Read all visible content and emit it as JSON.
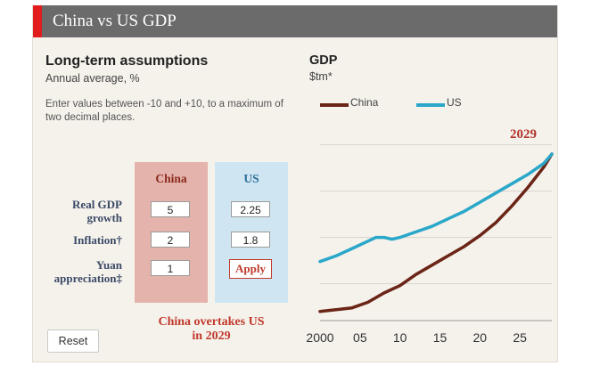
{
  "header": {
    "title": "China vs US GDP"
  },
  "assumptions": {
    "title": "Long-term assumptions",
    "subtitle": "Annual average, %",
    "instructions": "Enter values between -10 and +10, to a maximum of two decimal places.",
    "columns": {
      "china": "China",
      "us": "US"
    },
    "rows": [
      {
        "label_line1": "Real GDP",
        "label_line2": "growth",
        "china": "5",
        "us": "2.25"
      },
      {
        "label_line1": "Inflation†",
        "label_line2": "",
        "china": "2",
        "us": "1.8"
      },
      {
        "label_line1": "Yuan",
        "label_line2": "appreciation‡",
        "china": "1",
        "us": ""
      }
    ],
    "apply_label": "Apply",
    "overtake_line1": "China overtakes US",
    "overtake_line2": "in 2029",
    "reset_label": "Reset"
  },
  "colors": {
    "header_bg": "#6b6b6b",
    "header_accent": "#e01c1c",
    "china": "#6b2517",
    "us": "#2aa7c9",
    "china_column_bg": "#e4b3ac",
    "us_column_bg": "#cfe6f2",
    "highlight_red": "#c0392b"
  },
  "chart_data": {
    "type": "line",
    "title": "GDP",
    "ylabel": "$tm*",
    "annotation": "2029",
    "x_ticks": [
      2000,
      2005,
      2010,
      2015,
      2020,
      2025
    ],
    "x_tick_labels": [
      "2000",
      "05",
      "10",
      "15",
      "20",
      "25"
    ],
    "xlim": [
      2000,
      2029
    ],
    "ylim": [
      0,
      1
    ],
    "grid": true,
    "legend": "top",
    "series": [
      {
        "name": "China",
        "x": [
          2000,
          2002,
          2004,
          2006,
          2008,
          2010,
          2012,
          2014,
          2016,
          2018,
          2020,
          2022,
          2024,
          2026,
          2028,
          2029
        ],
        "y": [
          0.02,
          0.03,
          0.04,
          0.07,
          0.12,
          0.16,
          0.22,
          0.27,
          0.32,
          0.37,
          0.43,
          0.5,
          0.59,
          0.69,
          0.8,
          0.87
        ]
      },
      {
        "name": "US",
        "x": [
          2000,
          2002,
          2004,
          2006,
          2007,
          2008,
          2009,
          2010,
          2012,
          2014,
          2016,
          2018,
          2020,
          2022,
          2024,
          2026,
          2028,
          2029
        ],
        "y": [
          0.29,
          0.32,
          0.36,
          0.4,
          0.42,
          0.42,
          0.41,
          0.42,
          0.45,
          0.48,
          0.52,
          0.56,
          0.61,
          0.66,
          0.71,
          0.76,
          0.82,
          0.87
        ]
      }
    ]
  }
}
